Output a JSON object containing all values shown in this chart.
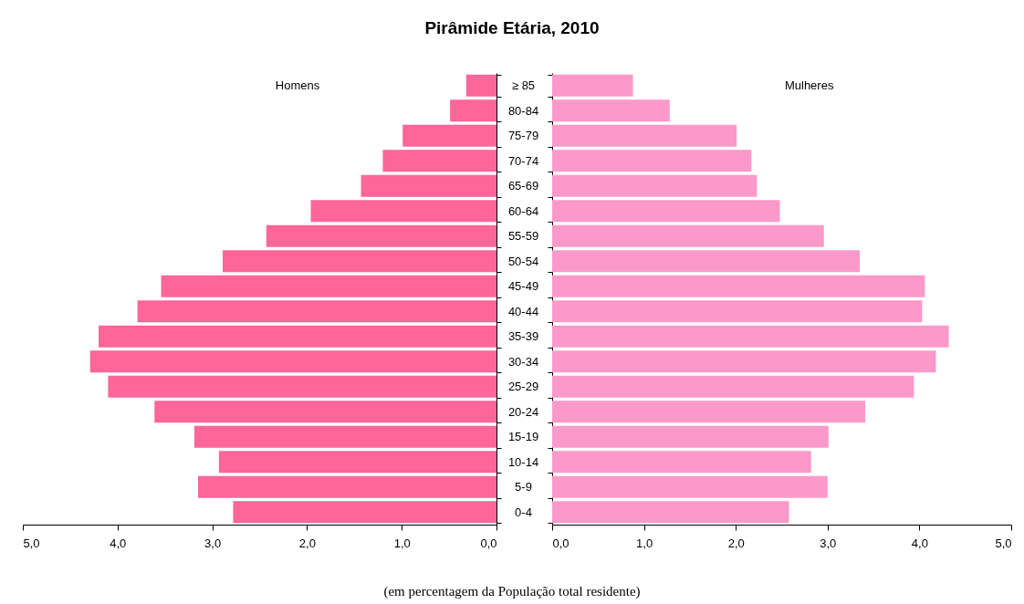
{
  "chart_data": [
    {
      "type": "bar",
      "orientation": "horizontal",
      "title": "Pirâmide Etária, 2010",
      "annotations": [
        "(em percentagem da População total residente)"
      ],
      "categories": [
        "≥ 85",
        "80-84",
        "75-79",
        "70-74",
        "65-69",
        "60-64",
        "55-59",
        "50-54",
        "45-49",
        "40-44",
        "35-39",
        "30-34",
        "25-29",
        "20-24",
        "15-19",
        "10-14",
        "5-9",
        "0-4"
      ],
      "series": [
        {
          "name": "Homens",
          "color": "#fc6698",
          "values": [
            0.32,
            0.49,
            0.99,
            1.2,
            1.43,
            1.96,
            2.43,
            2.89,
            3.54,
            3.79,
            4.2,
            4.29,
            4.1,
            3.61,
            3.19,
            2.93,
            3.15,
            2.78
          ]
        }
      ],
      "xlim": [
        5,
        0
      ],
      "xticks": [
        {
          "value": 5,
          "label": "5,0"
        },
        {
          "value": 4,
          "label": "4,0"
        },
        {
          "value": 3,
          "label": "3,0"
        },
        {
          "value": 2,
          "label": "2,0"
        },
        {
          "value": 1,
          "label": "1,0"
        },
        {
          "value": 0,
          "label": "0,0"
        }
      ]
    },
    {
      "type": "bar",
      "orientation": "horizontal",
      "tick_labels": "x",
      "series": [
        {
          "name": "Mulheres",
          "color": "#fb9aca",
          "values": [
            0.88,
            1.28,
            2.01,
            2.17,
            2.23,
            2.48,
            2.96,
            3.35,
            4.06,
            4.03,
            4.32,
            4.18,
            3.94,
            3.41,
            3.01,
            2.82,
            3.0,
            2.58
          ]
        }
      ],
      "xlim": [
        0,
        5
      ],
      "xticks": [
        {
          "value": 0,
          "label": "0,0"
        },
        {
          "value": 1,
          "label": "1,0"
        },
        {
          "value": 2,
          "label": "2,0"
        },
        {
          "value": 3,
          "label": "3,0"
        },
        {
          "value": 4,
          "label": "4,0"
        },
        {
          "value": 5,
          "label": "5,0"
        }
      ]
    }
  ]
}
